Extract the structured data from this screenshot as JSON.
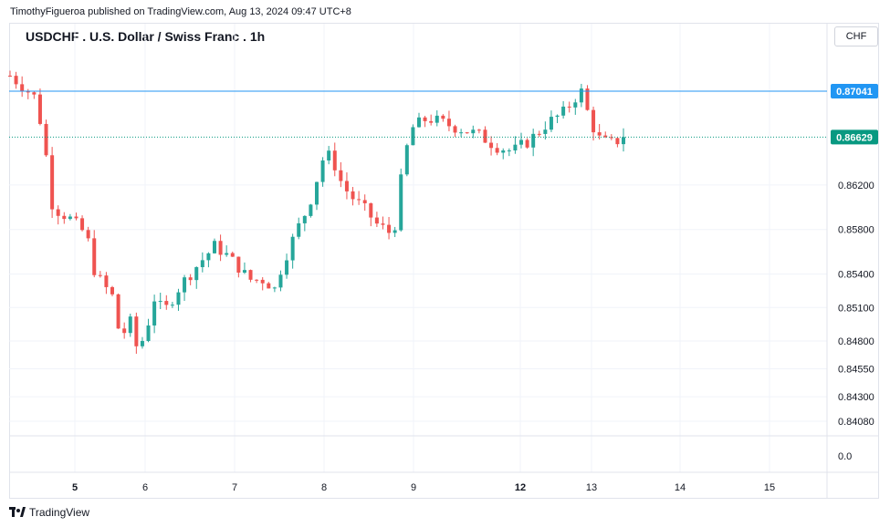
{
  "publisher": "TimothyFigueroa published on TradingView.com, Aug 13, 2024 09:47 UTC+8",
  "title": "USDCHF . U.S. Dollar / Swiss Franc . 1h",
  "currency": "CHF",
  "brand": "TradingView",
  "colors": {
    "up": "#26a69a",
    "down": "#ef5350",
    "hline": "#2196f3",
    "last": "#089981"
  },
  "chart_data": {
    "type": "candlestick",
    "symbol": "USDCHF",
    "interval": "1h",
    "x_ticks": [
      {
        "label": "5",
        "bold": true
      },
      {
        "label": "6",
        "bold": false
      },
      {
        "label": "7",
        "bold": false
      },
      {
        "label": "8",
        "bold": false
      },
      {
        "label": "9",
        "bold": false
      },
      {
        "label": "12",
        "bold": true
      },
      {
        "label": "13",
        "bold": false
      },
      {
        "label": "14",
        "bold": false
      },
      {
        "label": "15",
        "bold": false
      }
    ],
    "y_ticks": [
      "0.86200",
      "0.85800",
      "0.85400",
      "0.85100",
      "0.84800",
      "0.84550",
      "0.84300",
      "0.84080"
    ],
    "volume_axis_label": "0.0",
    "horizontal_line": {
      "value": 0.87041,
      "label": "0.87041"
    },
    "last_price": {
      "value": 0.86629,
      "label": "0.86629"
    },
    "grid": true,
    "path": [
      [
        0,
        0.8718
      ],
      [
        2,
        0.8705
      ],
      [
        3,
        0.8698
      ],
      [
        4,
        0.866
      ],
      [
        5,
        0.86
      ],
      [
        7,
        0.859
      ],
      [
        9,
        0.8575
      ],
      [
        10,
        0.854
      ],
      [
        12,
        0.852
      ],
      [
        13,
        0.848
      ],
      [
        14,
        0.85
      ],
      [
        15,
        0.847
      ],
      [
        16,
        0.849
      ],
      [
        17,
        0.852
      ],
      [
        18,
        0.8505
      ],
      [
        20,
        0.853
      ],
      [
        22,
        0.8548
      ],
      [
        24,
        0.8565
      ],
      [
        25,
        0.856
      ],
      [
        27,
        0.8545
      ],
      [
        28,
        0.8535
      ],
      [
        30,
        0.8535
      ],
      [
        31,
        0.8525
      ],
      [
        32,
        0.855
      ],
      [
        34,
        0.8585
      ],
      [
        35,
        0.86
      ],
      [
        36,
        0.8625
      ],
      [
        37,
        0.865
      ],
      [
        38,
        0.864
      ],
      [
        39,
        0.862
      ],
      [
        40,
        0.861
      ],
      [
        42,
        0.8595
      ],
      [
        43,
        0.8585
      ],
      [
        44,
        0.858
      ],
      [
        45,
        0.8575
      ],
      [
        46,
        0.863
      ],
      [
        47,
        0.867
      ],
      [
        49,
        0.868
      ],
      [
        51,
        0.8675
      ],
      [
        53,
        0.867
      ],
      [
        55,
        0.8665
      ],
      [
        57,
        0.8655
      ],
      [
        59,
        0.865
      ],
      [
        61,
        0.866
      ],
      [
        63,
        0.8675
      ],
      [
        65,
        0.8685
      ],
      [
        66,
        0.8695
      ],
      [
        67,
        0.8705
      ],
      [
        68,
        0.868
      ],
      [
        69,
        0.8662
      ],
      [
        70,
        0.8658
      ],
      [
        71,
        0.8657
      ],
      [
        72,
        0.8666
      ]
    ]
  }
}
